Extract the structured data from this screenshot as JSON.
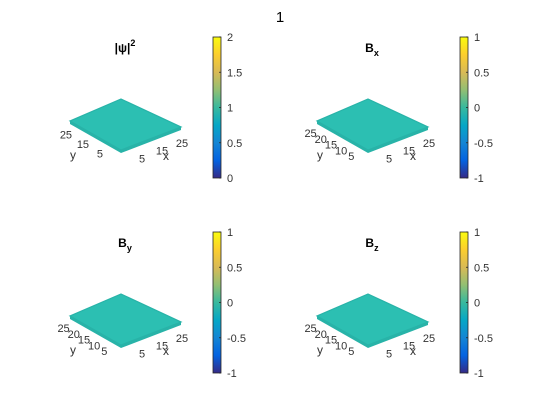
{
  "figure_title": "1",
  "colors": {
    "surface": "#2cbfb2",
    "surface_edge": "#28b3a8",
    "tick_text": "#333333",
    "axis": "#262626"
  },
  "chart_data": [
    {
      "type": "surface",
      "title": "|ψ|",
      "title_superscript": "2",
      "xlabel": "x",
      "ylabel": "y",
      "x_ticks": [
        "5",
        "15",
        "25"
      ],
      "y_ticks": [
        "25",
        "15",
        "5"
      ],
      "surface_value": 1,
      "colorbar": {
        "colormap": "parula",
        "range": [
          0,
          2
        ],
        "ticks": [
          "2",
          "1.5",
          "1",
          "0.5",
          "0"
        ]
      }
    },
    {
      "type": "surface",
      "title": "B",
      "title_subscript": "x",
      "xlabel": "x",
      "ylabel": "y",
      "x_ticks": [
        "5",
        "15",
        "25"
      ],
      "y_ticks": [
        "25",
        "20",
        "15",
        "10",
        "5"
      ],
      "surface_value": 0,
      "colorbar": {
        "colormap": "parula",
        "range": [
          -1,
          1
        ],
        "ticks": [
          "1",
          "0.5",
          "0",
          "-0.5",
          "-1"
        ]
      }
    },
    {
      "type": "surface",
      "title": "B",
      "title_subscript": "y",
      "xlabel": "x",
      "ylabel": "y",
      "x_ticks": [
        "5",
        "15",
        "25"
      ],
      "y_ticks": [
        "25",
        "20",
        "15",
        "10",
        "5"
      ],
      "surface_value": 0,
      "colorbar": {
        "colormap": "parula",
        "range": [
          -1,
          1
        ],
        "ticks": [
          "1",
          "0.5",
          "0",
          "-0.5",
          "-1"
        ]
      }
    },
    {
      "type": "surface",
      "title": "B",
      "title_subscript": "z",
      "xlabel": "x",
      "ylabel": "y",
      "x_ticks": [
        "5",
        "15",
        "25"
      ],
      "y_ticks": [
        "25",
        "20",
        "15",
        "10",
        "5"
      ],
      "surface_value": 0,
      "colorbar": {
        "colormap": "parula",
        "range": [
          -1,
          1
        ],
        "ticks": [
          "1",
          "0.5",
          "0",
          "-0.5",
          "-1"
        ]
      }
    }
  ]
}
